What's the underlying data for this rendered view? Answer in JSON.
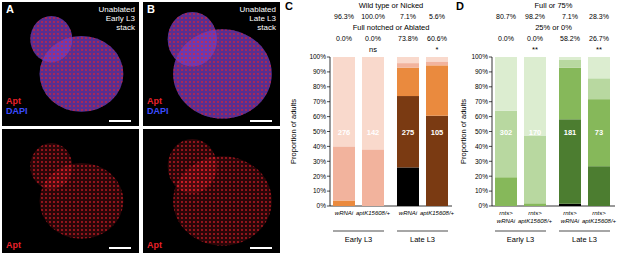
{
  "images": [
    {
      "panel": "A",
      "title": [
        "Unablated",
        "Early L3",
        "stack"
      ],
      "top_channels": [
        {
          "text": "Apt",
          "color": "#e8202a"
        },
        {
          "text": "DAPI",
          "color": "#3a4cff"
        }
      ],
      "bottom_channel": {
        "text": "Apt",
        "color": "#e8202a"
      }
    },
    {
      "panel": "B",
      "title": [
        "Unablated",
        "Late L3",
        "stack"
      ],
      "top_channels": [
        {
          "text": "Apt",
          "color": "#e8202a"
        },
        {
          "text": "DAPI",
          "color": "#3a4cff"
        }
      ],
      "bottom_channel": {
        "text": "Apt",
        "color": "#e8202a"
      }
    }
  ],
  "chart_data": [
    {
      "panel": "C",
      "type": "bar",
      "stacked": true,
      "y_label": "Proportion of adults",
      "categories": [
        "wRNAi",
        "aptK15608/+",
        "wRNAi",
        "aptK15608/+"
      ],
      "groups": [
        "Early L3",
        "Late L3"
      ],
      "series": [
        {
          "color": "#000000",
          "values": [
            0,
            0,
            25.9,
            0
          ]
        },
        {
          "color": "#7a3a12",
          "values": [
            0,
            0,
            47.9,
            60.6
          ]
        },
        {
          "color": "#ea8a3e",
          "values": [
            3.7,
            0,
            19.1,
            33.8
          ]
        },
        {
          "color": "#f2b39d",
          "values": [
            36.3,
            38,
            3,
            2.6
          ]
        },
        {
          "color": "#f9d9cc",
          "values": [
            60,
            62,
            4.1,
            3
          ]
        }
      ],
      "ylim": [
        0,
        100
      ],
      "yticks": [
        {
          "value": 0,
          "label": "0%"
        },
        {
          "value": 10,
          "label": "10%"
        },
        {
          "value": 20,
          "label": "20%"
        },
        {
          "value": 30,
          "label": "30%"
        },
        {
          "value": 40,
          "label": "40%"
        },
        {
          "value": 50,
          "label": "50%"
        },
        {
          "value": 60,
          "label": "60%"
        },
        {
          "value": 70,
          "label": "70%"
        },
        {
          "value": 80,
          "label": "80%"
        },
        {
          "value": 90,
          "label": "90%"
        },
        {
          "value": 100,
          "label": "100%"
        }
      ],
      "summary": [
        {
          "title": "Wild type or Nicked",
          "values": [
            96.3,
            100,
            7.1,
            5.6
          ],
          "value_labels": [
            "96.3%",
            "100.0%",
            "7.1%",
            "5.6%"
          ]
        },
        {
          "title": "Full notched or Ablated",
          "values": [
            0,
            0,
            73.8,
            60.6
          ],
          "value_labels": [
            "0.0%",
            "0.0%",
            "73.8%",
            "60.6%"
          ]
        }
      ],
      "significance": [
        null,
        "ns",
        null,
        "*"
      ],
      "n": [
        276,
        142,
        275,
        105
      ]
    },
    {
      "panel": "D",
      "type": "bar",
      "stacked": true,
      "y_label": "Proportion of adults",
      "categories": [
        "rnts> wRNAi",
        "rnts> aptK15608/+",
        "rnts> wRNAi",
        "rnts> aptK15608/+"
      ],
      "groups": [
        "Early L3",
        "Late L3"
      ],
      "series": [
        {
          "color": "#000000",
          "values": [
            0,
            0,
            1.5,
            0
          ]
        },
        {
          "color": "#4c7d30",
          "values": [
            0,
            0,
            56.7,
            26.7
          ]
        },
        {
          "color": "#86b85a",
          "values": [
            19.3,
            1.8,
            34.7,
            45
          ]
        },
        {
          "color": "#b8d8a0",
          "values": [
            44.7,
            45.2,
            5.1,
            14
          ]
        },
        {
          "color": "#dcedd0",
          "values": [
            36,
            53,
            2,
            14.3
          ]
        }
      ],
      "ylim": [
        0,
        100
      ],
      "yticks": [
        {
          "value": 0,
          "label": "0%"
        },
        {
          "value": 10,
          "label": "10%"
        },
        {
          "value": 20,
          "label": "20%"
        },
        {
          "value": 30,
          "label": "30%"
        },
        {
          "value": 40,
          "label": "40%"
        },
        {
          "value": 50,
          "label": "50%"
        },
        {
          "value": 60,
          "label": "60%"
        },
        {
          "value": 70,
          "label": "70%"
        },
        {
          "value": 80,
          "label": "80%"
        },
        {
          "value": 90,
          "label": "90%"
        },
        {
          "value": 100,
          "label": "100%"
        }
      ],
      "summary": [
        {
          "title": "Full or 75%",
          "values": [
            80.7,
            98.2,
            7.1,
            28.3
          ],
          "value_labels": [
            "80.7%",
            "98.2%",
            "7.1%",
            "28.3%"
          ]
        },
        {
          "title": "25% or 0%",
          "values": [
            0,
            0,
            58.2,
            26.7
          ],
          "value_labels": [
            "0.0%",
            "0.0%",
            "58.2%",
            "26.7%"
          ]
        }
      ],
      "significance": [
        null,
        "**",
        null,
        "**"
      ],
      "n": [
        302,
        170,
        181,
        73
      ]
    }
  ]
}
